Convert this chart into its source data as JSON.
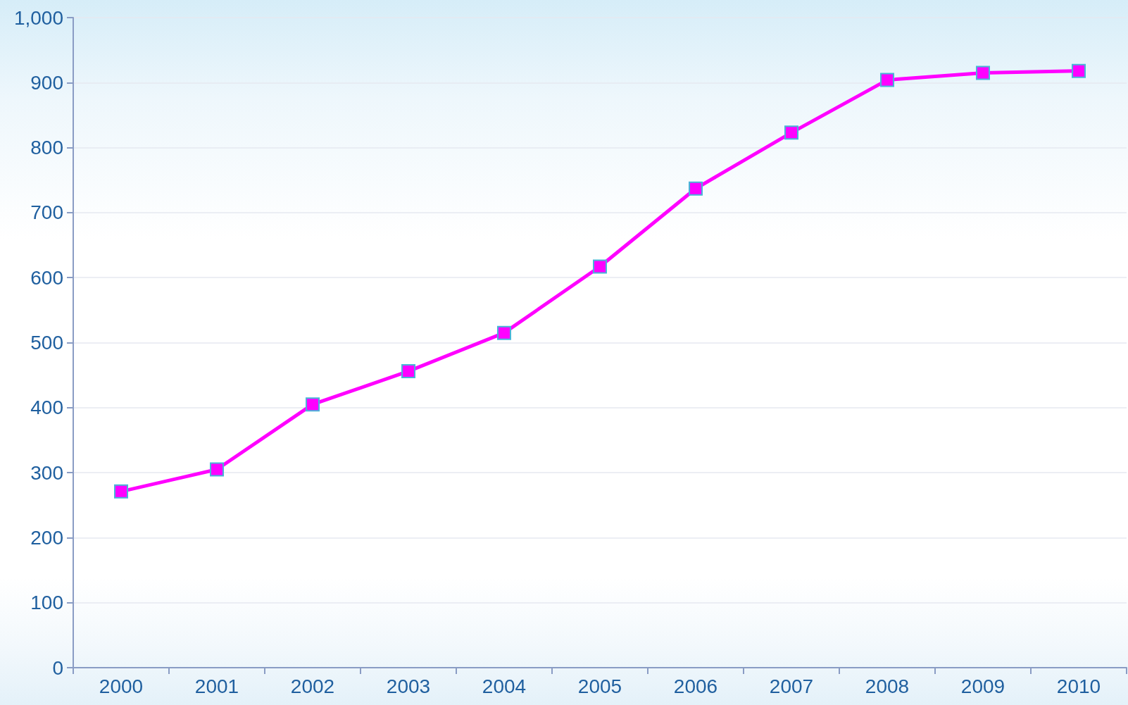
{
  "chart_data": {
    "type": "line",
    "categories": [
      "2000",
      "2001",
      "2002",
      "2003",
      "2004",
      "2005",
      "2006",
      "2007",
      "2008",
      "2009",
      "2010"
    ],
    "series": [
      {
        "color": "#ff00ff",
        "values": [
          271,
          305,
          405,
          456,
          515,
          617,
          737,
          823,
          904,
          915,
          918
        ]
      }
    ],
    "ylim": [
      0,
      1000
    ],
    "yticks": [
      0,
      100,
      200,
      300,
      400,
      500,
      600,
      700,
      800,
      900,
      {
        "value": 1000,
        "label": "1,000"
      }
    ],
    "grid": "y",
    "marker": "square",
    "line_style": "solid"
  }
}
